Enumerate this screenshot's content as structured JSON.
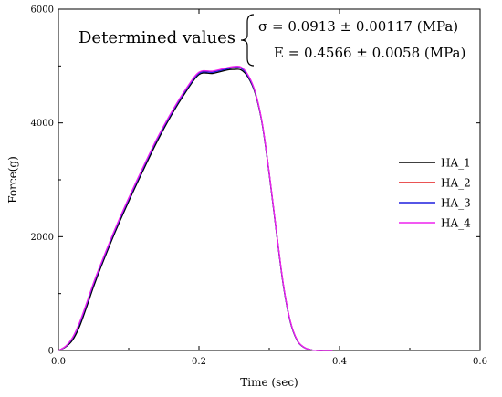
{
  "chart_data": {
    "type": "line",
    "title": "",
    "xlabel": "Time (sec)",
    "ylabel": "Force(g)",
    "xlim": [
      0.0,
      0.6
    ],
    "ylim": [
      0,
      6000
    ],
    "xticks": [
      0.0,
      0.2,
      0.4,
      0.6
    ],
    "xtick_labels": [
      "0.0",
      "0.2",
      "0.4",
      "0.6"
    ],
    "yticks": [
      0,
      2000,
      4000,
      6000
    ],
    "ytick_labels": [
      "0",
      "2000",
      "4000",
      "6000"
    ],
    "grid": false,
    "legend_position": "right",
    "annotation": {
      "label": "Determined values",
      "line1": "σ = 0.0913 ± 0.00117  (MPa)",
      "line2": "E = 0.4566 ± 0.0058 (MPa)"
    },
    "series": [
      {
        "name": "HA_1",
        "color": "#000000",
        "x": [
          0.0,
          0.01,
          0.02,
          0.03,
          0.04,
          0.05,
          0.06,
          0.08,
          0.1,
          0.12,
          0.14,
          0.16,
          0.18,
          0.2,
          0.22,
          0.24,
          0.25,
          0.26,
          0.27,
          0.28,
          0.29,
          0.3,
          0.31,
          0.32,
          0.33,
          0.34,
          0.35,
          0.36,
          0.37,
          0.38,
          0.39
        ],
        "y": [
          0,
          60,
          180,
          420,
          760,
          1120,
          1450,
          2060,
          2620,
          3150,
          3660,
          4120,
          4520,
          4850,
          4870,
          4930,
          4940,
          4930,
          4800,
          4520,
          3980,
          3100,
          2100,
          1150,
          500,
          170,
          50,
          10,
          0,
          0,
          0
        ]
      },
      {
        "name": "HA_2",
        "color": "#e41a1c",
        "x": [
          0.0,
          0.01,
          0.02,
          0.03,
          0.04,
          0.05,
          0.06,
          0.08,
          0.1,
          0.12,
          0.14,
          0.16,
          0.18,
          0.2,
          0.22,
          0.24,
          0.25,
          0.26,
          0.27,
          0.28,
          0.29,
          0.3,
          0.31,
          0.32,
          0.33,
          0.34,
          0.35,
          0.36,
          0.37,
          0.38,
          0.39
        ],
        "y": [
          0,
          70,
          220,
          480,
          820,
          1180,
          1500,
          2110,
          2670,
          3200,
          3710,
          4160,
          4560,
          4880,
          4900,
          4960,
          4980,
          4970,
          4830,
          4540,
          3990,
          3110,
          2110,
          1160,
          510,
          175,
          52,
          10,
          0,
          0,
          0
        ]
      },
      {
        "name": "HA_3",
        "color": "#1f1fdd",
        "x": [
          0.0,
          0.01,
          0.02,
          0.03,
          0.04,
          0.05,
          0.06,
          0.08,
          0.1,
          0.12,
          0.14,
          0.16,
          0.18,
          0.2,
          0.22,
          0.24,
          0.25,
          0.26,
          0.27,
          0.28,
          0.29,
          0.3,
          0.31,
          0.32,
          0.33,
          0.34,
          0.35,
          0.36,
          0.37,
          0.38,
          0.39
        ],
        "y": [
          0,
          68,
          215,
          470,
          810,
          1170,
          1490,
          2100,
          2660,
          3190,
          3700,
          4150,
          4550,
          4870,
          4890,
          4950,
          4970,
          4960,
          4820,
          4535,
          3985,
          3105,
          2105,
          1155,
          505,
          172,
          51,
          10,
          0,
          0,
          0
        ]
      },
      {
        "name": "HA_4",
        "color": "#ee22ee",
        "x": [
          0.0,
          0.01,
          0.02,
          0.03,
          0.04,
          0.05,
          0.06,
          0.08,
          0.1,
          0.12,
          0.14,
          0.16,
          0.18,
          0.2,
          0.22,
          0.24,
          0.25,
          0.26,
          0.27,
          0.28,
          0.29,
          0.3,
          0.31,
          0.32,
          0.33,
          0.34,
          0.35,
          0.36,
          0.37,
          0.38,
          0.39
        ],
        "y": [
          0,
          72,
          225,
          490,
          830,
          1190,
          1510,
          2120,
          2680,
          3210,
          3720,
          4170,
          4570,
          4890,
          4910,
          4970,
          4990,
          4980,
          4840,
          4550,
          4000,
          3120,
          2120,
          1170,
          515,
          178,
          53,
          10,
          0,
          0,
          0
        ]
      }
    ]
  }
}
